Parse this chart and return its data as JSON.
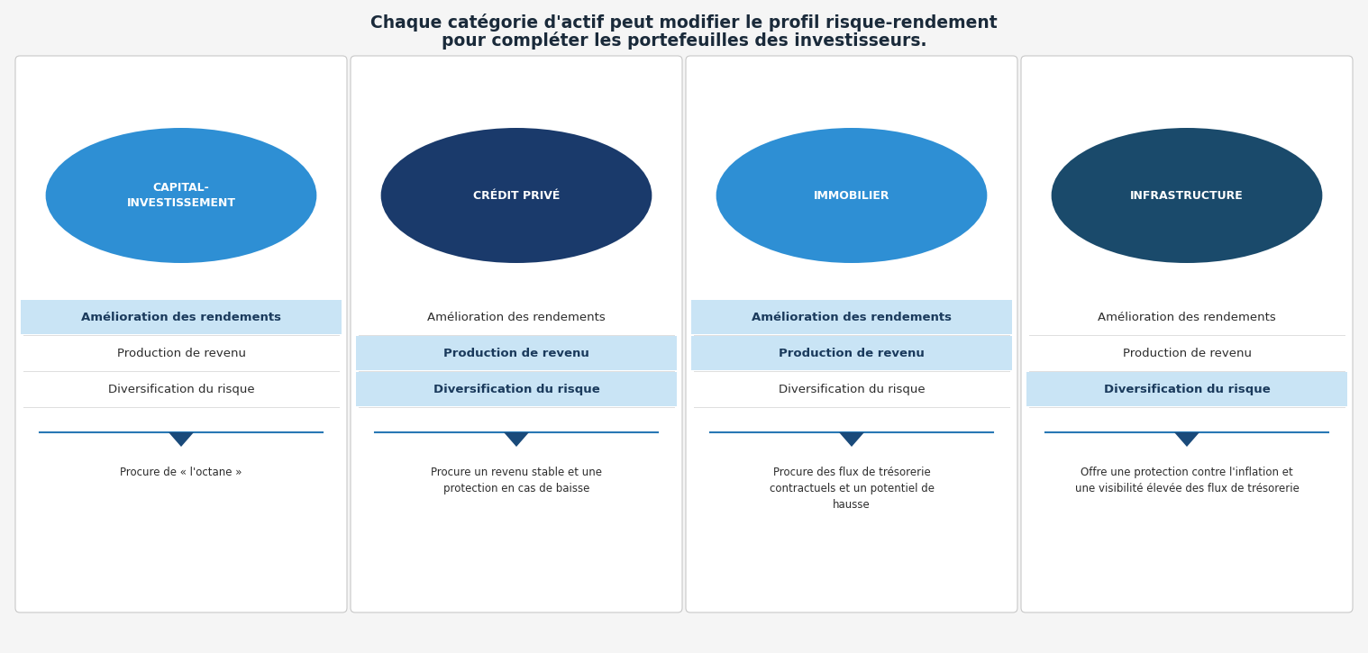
{
  "title_line1": "Chaque catégorie d'actif peut modifier le profil risque-rendement",
  "title_line2": "pour compléter les portefeuilles des investisseurs.",
  "bg_color": "#f5f5f5",
  "card_bg": "#ffffff",
  "card_border": "#cccccc",
  "highlight_bg": "#c9e4f5",
  "highlight_text_color": "#1a3a5c",
  "normal_text_color": "#2c2c2c",
  "arrow_color": "#1a4a7a",
  "line_color": "#2878b5",
  "cards": [
    {
      "circle_color": "#2e8fd4",
      "circle_text": "CAPITAL-\nINVESTISSEMENT",
      "rows": [
        {
          "text": "Amélioration des rendements",
          "highlight": true
        },
        {
          "text": "Production de revenu",
          "highlight": false
        },
        {
          "text": "Diversification du risque",
          "highlight": false
        }
      ],
      "description": "Procure de « l'octane »"
    },
    {
      "circle_color": "#1a3a6b",
      "circle_text": "CRÉDIT PRIVÉ",
      "rows": [
        {
          "text": "Amélioration des rendements",
          "highlight": false
        },
        {
          "text": "Production de revenu",
          "highlight": true
        },
        {
          "text": "Diversification du risque",
          "highlight": true
        }
      ],
      "description": "Procure un revenu stable et une\nprotection en cas de baisse"
    },
    {
      "circle_color": "#2e8fd4",
      "circle_text": "IMMOBILIER",
      "rows": [
        {
          "text": "Amélioration des rendements",
          "highlight": true
        },
        {
          "text": "Production de revenu",
          "highlight": true
        },
        {
          "text": "Diversification du risque",
          "highlight": false
        }
      ],
      "description": "Procure des flux de trésorerie\ncontractuels et un potentiel de\nhausse"
    },
    {
      "circle_color": "#1a4a6b",
      "circle_text": "INFRASTRUCTURE",
      "rows": [
        {
          "text": "Amélioration des rendements",
          "highlight": false
        },
        {
          "text": "Production de revenu",
          "highlight": false
        },
        {
          "text": "Diversification du risque",
          "highlight": true
        }
      ],
      "description": "Offre une protection contre l'inflation et\nune visibilité élevée des flux de trésorerie"
    }
  ]
}
